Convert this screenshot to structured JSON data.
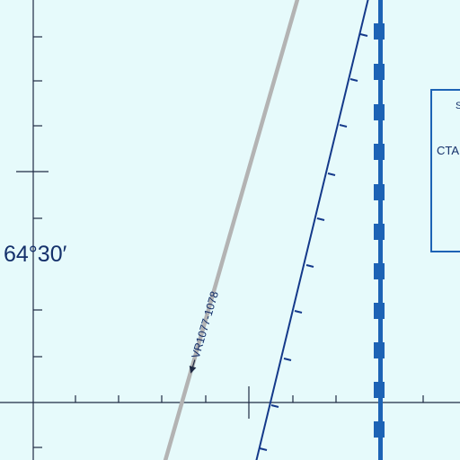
{
  "map": {
    "latitude_label": "64°30′",
    "route_label": "VR1077-1078",
    "airspace_text_top": "S",
    "airspace_text_mid": "CTA",
    "colors": {
      "background": "#e6fafb",
      "graticule": "#1f2a44",
      "route": "#b3b3b3",
      "boundary_line": "#14398a",
      "airspace_border": "#1d63b5",
      "label_text": "#14306b"
    }
  }
}
